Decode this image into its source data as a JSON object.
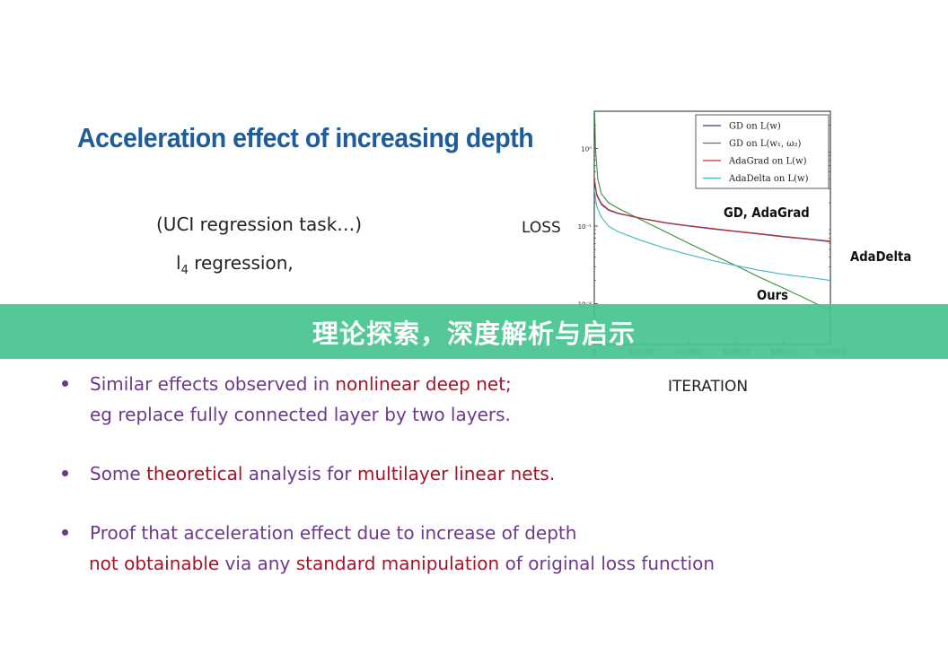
{
  "slide": {
    "title": "Acceleration effect of increasing depth",
    "subtitle_1": "(UCI regression task…)",
    "subtitle_2_l": "l",
    "subtitle_2_sub": "4",
    "subtitle_2_rest": " regression,",
    "loss_label": "LOSS",
    "iteration_label": "ITERATION",
    "annotation_gd": "GD, AdaGrad",
    "annotation_adadelta": "AdaDelta",
    "annotation_ours": "Ours"
  },
  "banner": {
    "text": "理论探索，深度解析与启示",
    "color": "#48c48f"
  },
  "bullets": [
    {
      "lines": [
        [
          {
            "t": "Similar effects observed in ",
            "c": "purple"
          },
          {
            "t": "nonlinear deep net;",
            "c": "red"
          }
        ],
        [
          {
            "t": " eg replace fully connected layer by two layers.",
            "c": "purple"
          }
        ]
      ]
    },
    {
      "lines": [
        [
          {
            "t": "Some ",
            "c": "purple"
          },
          {
            "t": "theoretical",
            "c": "red"
          },
          {
            "t": " analysis for ",
            "c": "purple"
          },
          {
            "t": "multilayer linear nets.",
            "c": "red"
          }
        ]
      ]
    },
    {
      "lines": [
        [
          {
            "t": "Proof that acceleration effect due to increase of depth",
            "c": "purple"
          }
        ],
        [
          {
            "t": "not obtainable",
            "c": "red"
          },
          {
            "t": " via any ",
            "c": "purple"
          },
          {
            "t": "standard manipulation",
            "c": "red"
          },
          {
            "t": " of original loss function",
            "c": "purple"
          }
        ]
      ]
    }
  ],
  "chart_data": {
    "type": "line",
    "y_scale": "log",
    "xlim": [
      0,
      1000000
    ],
    "ylim": [
      0.003,
      3
    ],
    "x_ticks": [
      0,
      200000,
      400000,
      600000,
      800000,
      1000000
    ],
    "x_tick_labels": [
      "0",
      "200000",
      "400000",
      "600000",
      "800000",
      "1000000"
    ],
    "y_ticks": [
      1,
      0.1,
      0.01
    ],
    "y_tick_labels": [
      "10⁰",
      "10⁻¹",
      "10⁻²"
    ],
    "legend_position": "top-right",
    "series": [
      {
        "name": "GD on L(w)",
        "color": "#3b3b9c",
        "x": [
          0,
          10000,
          30000,
          60000,
          100000,
          200000,
          300000,
          400000,
          500000,
          600000,
          700000,
          800000,
          900000,
          1000000
        ],
        "y": [
          0.4,
          0.25,
          0.19,
          0.16,
          0.145,
          0.125,
          0.11,
          0.1,
          0.092,
          0.085,
          0.079,
          0.073,
          0.068,
          0.063
        ]
      },
      {
        "name": "GD on L(w₁, ω₂)",
        "color": "#3a8f3a",
        "x": [
          0,
          5000,
          15000,
          30000,
          60000,
          100000,
          200000,
          300000,
          400000,
          500000,
          600000,
          700000,
          800000,
          900000,
          1000000
        ],
        "y": [
          5,
          1.0,
          0.4,
          0.26,
          0.2,
          0.17,
          0.12,
          0.085,
          0.06,
          0.043,
          0.031,
          0.022,
          0.016,
          0.0115,
          0.0082
        ]
      },
      {
        "name": "AdaGrad on L(w)",
        "color": "#c03030",
        "x": [
          0,
          10000,
          30000,
          60000,
          100000,
          200000,
          300000,
          400000,
          500000,
          600000,
          700000,
          800000,
          900000,
          1000000
        ],
        "y": [
          0.42,
          0.26,
          0.195,
          0.163,
          0.147,
          0.126,
          0.111,
          0.101,
          0.093,
          0.086,
          0.08,
          0.074,
          0.069,
          0.064
        ]
      },
      {
        "name": "AdaDelta on L(w)",
        "color": "#3fb6c4",
        "x": [
          0,
          10000,
          30000,
          60000,
          100000,
          200000,
          300000,
          400000,
          500000,
          600000,
          700000,
          800000,
          900000,
          1000000
        ],
        "y": [
          0.3,
          0.18,
          0.13,
          0.1,
          0.085,
          0.065,
          0.052,
          0.043,
          0.036,
          0.031,
          0.027,
          0.024,
          0.022,
          0.02
        ]
      }
    ]
  }
}
